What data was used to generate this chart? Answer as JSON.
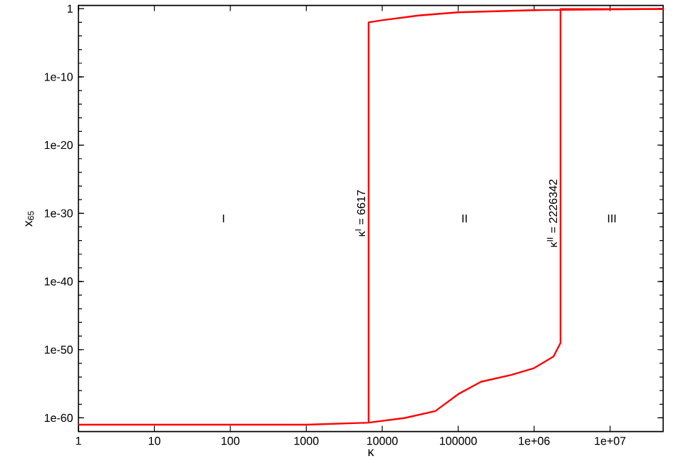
{
  "chart_data": {
    "type": "line",
    "xlabel": "κ",
    "ylabel": "x$_{65}$",
    "log": "xy",
    "xlim": [
      1,
      50000000
    ],
    "ylim": [
      1e-62,
      3
    ],
    "xticks": [
      1,
      10,
      100,
      1000,
      10000,
      100000,
      {
        "value": 1000000,
        "label": "1e+06"
      },
      {
        "value": 10000000,
        "label": "1e+07"
      }
    ],
    "yticks": [
      1e-60,
      1e-50,
      1e-40,
      1e-30,
      1e-20,
      1e-10,
      1
    ],
    "marker": "none",
    "line_style": "solid",
    "series": [
      {
        "color": "#ff0000",
        "x": [
          1,
          100,
          1000,
          6617,
          20000,
          50000,
          100000,
          200000,
          500000,
          1000000,
          1800000,
          2226342,
          2226342,
          50000000
        ],
        "values": [
          1e-61,
          1e-61,
          1e-61,
          2e-61,
          1e-60,
          1e-59,
          3e-57,
          2e-55,
          2e-54,
          2e-53,
          1e-51,
          1e-49,
          0.9,
          0.9
        ]
      },
      {
        "color": "#ff0000",
        "x": [
          6617,
          6617,
          10000,
          30000,
          100000,
          1000000,
          50000000
        ],
        "values": [
          2e-61,
          0.01,
          0.02,
          0.1,
          0.3,
          0.6,
          0.9
        ]
      }
    ],
    "annotations": [
      "I",
      "II",
      "III",
      {
        "text": "κ$^{I}$ = 6617",
        "x": 6617,
        "y": 1e-30
      },
      {
        "text": "κ$^{II}$ = 2226342",
        "x": 2226342,
        "y": 1e-30
      }
    ]
  }
}
